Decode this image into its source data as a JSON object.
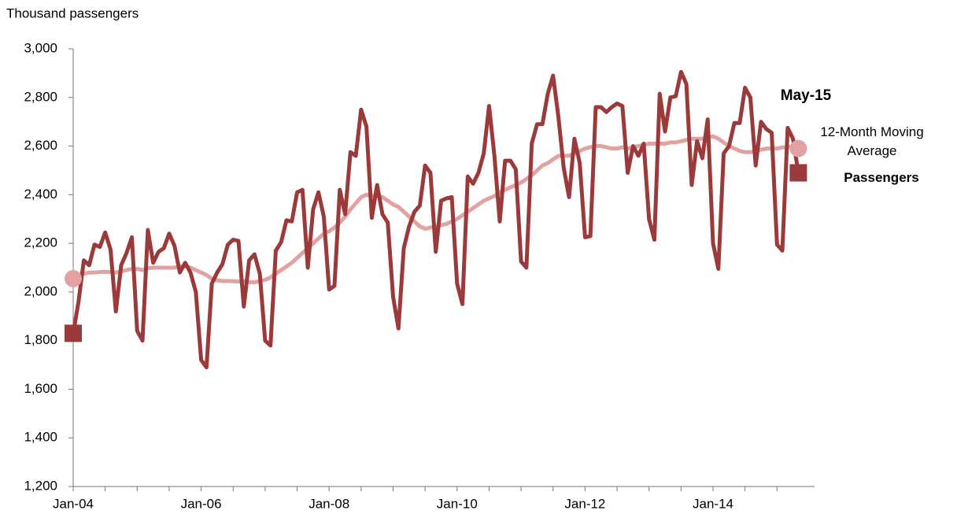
{
  "chart_data": {
    "type": "line",
    "y_axis_title": "Thousand passengers",
    "annotation": "May-15",
    "categories": [
      "Jan-04",
      null,
      null,
      null,
      null,
      null,
      null,
      null,
      null,
      null,
      null,
      null,
      null,
      null,
      null,
      null,
      null,
      null,
      null,
      null,
      null,
      null,
      null,
      null,
      "Jan-06",
      null,
      null,
      null,
      null,
      null,
      null,
      null,
      null,
      null,
      null,
      null,
      null,
      null,
      null,
      null,
      null,
      null,
      null,
      null,
      null,
      null,
      null,
      null,
      "Jan-08",
      null,
      null,
      null,
      null,
      null,
      null,
      null,
      null,
      null,
      null,
      null,
      null,
      null,
      null,
      null,
      null,
      null,
      null,
      null,
      null,
      null,
      null,
      null,
      "Jan-10",
      null,
      null,
      null,
      null,
      null,
      null,
      null,
      null,
      null,
      null,
      null,
      null,
      null,
      null,
      null,
      null,
      null,
      null,
      null,
      null,
      null,
      null,
      null,
      "Jan-12",
      null,
      null,
      null,
      null,
      null,
      null,
      null,
      null,
      null,
      null,
      null,
      null,
      null,
      null,
      null,
      null,
      null,
      null,
      null,
      null,
      null,
      null,
      null,
      "Jan-14",
      null,
      null,
      null,
      null,
      null,
      null,
      null,
      null,
      null,
      null,
      null,
      null,
      null,
      null,
      null,
      null
    ],
    "series": [
      {
        "name": "Passengers",
        "color": "#9b3a3a",
        "values": [
          1830,
          1960,
          2130,
          2110,
          2195,
          2185,
          2245,
          2175,
          1920,
          2110,
          2160,
          2225,
          1840,
          1800,
          2255,
          2120,
          2165,
          2180,
          2240,
          2190,
          2080,
          2120,
          2080,
          2000,
          1720,
          1690,
          2035,
          2080,
          2115,
          2195,
          2215,
          2210,
          1940,
          2130,
          2155,
          2075,
          1800,
          1780,
          2170,
          2205,
          2295,
          2290,
          2410,
          2420,
          2100,
          2340,
          2410,
          2310,
          2010,
          2025,
          2420,
          2320,
          2575,
          2560,
          2750,
          2680,
          2305,
          2440,
          2320,
          2285,
          1980,
          1850,
          2180,
          2270,
          2330,
          2355,
          2520,
          2490,
          2165,
          2375,
          2385,
          2390,
          2035,
          1950,
          2475,
          2445,
          2490,
          2570,
          2765,
          2560,
          2290,
          2540,
          2540,
          2505,
          2125,
          2100,
          2610,
          2690,
          2690,
          2815,
          2890,
          2720,
          2510,
          2390,
          2630,
          2530,
          2225,
          2230,
          2760,
          2760,
          2740,
          2760,
          2775,
          2765,
          2490,
          2600,
          2560,
          2610,
          2300,
          2215,
          2815,
          2660,
          2800,
          2805,
          2905,
          2855,
          2440,
          2620,
          2550,
          2710,
          2200,
          2095,
          2570,
          2600,
          2695,
          2695,
          2840,
          2800,
          2520,
          2700,
          2670,
          2655,
          2195,
          2170,
          2675,
          2630,
          2490
        ]
      },
      {
        "name": "12-Month Moving Average",
        "color": "#e3a1a1",
        "values": [
          2055,
          2070,
          2075,
          2080,
          2080,
          2082,
          2083,
          2082,
          2080,
          2085,
          2090,
          2095,
          2095,
          2090,
          2098,
          2100,
          2100,
          2100,
          2100,
          2100,
          2105,
          2105,
          2100,
          2090,
          2080,
          2070,
          2055,
          2048,
          2045,
          2045,
          2044,
          2043,
          2045,
          2040,
          2040,
          2045,
          2050,
          2060,
          2075,
          2090,
          2105,
          2120,
          2140,
          2160,
          2180,
          2200,
          2220,
          2240,
          2250,
          2265,
          2285,
          2310,
          2340,
          2365,
          2390,
          2400,
          2395,
          2395,
          2390,
          2375,
          2360,
          2350,
          2330,
          2310,
          2290,
          2270,
          2260,
          2265,
          2270,
          2275,
          2280,
          2290,
          2300,
          2315,
          2330,
          2345,
          2360,
          2375,
          2385,
          2395,
          2410,
          2420,
          2430,
          2440,
          2450,
          2465,
          2480,
          2500,
          2520,
          2530,
          2545,
          2560,
          2560,
          2560,
          2570,
          2580,
          2590,
          2595,
          2600,
          2600,
          2595,
          2590,
          2590,
          2595,
          2590,
          2595,
          2600,
          2605,
          2610,
          2610,
          2610,
          2610,
          2615,
          2615,
          2620,
          2625,
          2630,
          2630,
          2630,
          2635,
          2640,
          2630,
          2615,
          2600,
          2590,
          2580,
          2575,
          2575,
          2580,
          2585,
          2590,
          2590,
          2590,
          2595,
          2595,
          2600,
          2590
        ]
      }
    ],
    "ylim": [
      1200,
      3000
    ],
    "yticks": [
      {
        "value": 1200,
        "label": "1,200"
      },
      {
        "value": 1400,
        "label": "1,400"
      },
      {
        "value": 1600,
        "label": "1,600"
      },
      {
        "value": 1800,
        "label": "1,800"
      },
      {
        "value": 2000,
        "label": "2,000"
      },
      {
        "value": 2200,
        "label": "2,200"
      },
      {
        "value": 2400,
        "label": "2,400"
      },
      {
        "value": 2600,
        "label": "2,600"
      },
      {
        "value": 2800,
        "label": "2,800"
      },
      {
        "value": 3000,
        "label": "3,000"
      }
    ],
    "grid": false
  }
}
